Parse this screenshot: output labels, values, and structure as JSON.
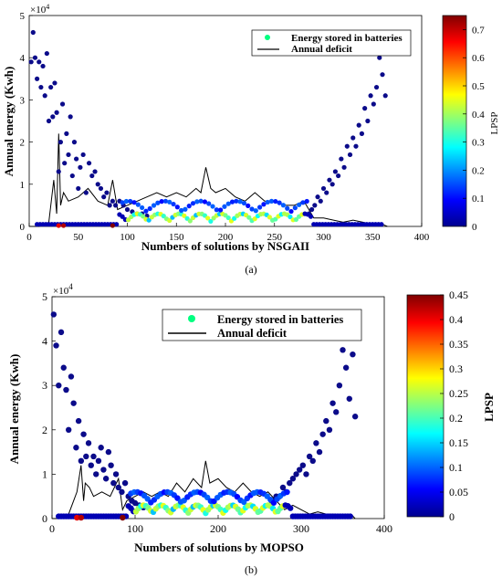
{
  "chart_data": [
    {
      "type": "scatter",
      "caption": "(a)",
      "xlabel": "Numbers of solutions by NSGAII",
      "ylabel": "Annual energy (Kwh)",
      "yexponent": "×10^4",
      "xlim": [
        0,
        400
      ],
      "ylim": [
        0,
        5
      ],
      "xticks": [
        "0",
        "50",
        "100",
        "150",
        "200",
        "250",
        "300",
        "350",
        "400"
      ],
      "yticks": [
        "0",
        "1",
        "2",
        "3",
        "4",
        "5"
      ],
      "colorbar": {
        "label": "LPSP",
        "range": [
          0,
          0.75
        ],
        "ticks": [
          "0",
          "0.1",
          "0.2",
          "0.3",
          "0.4",
          "0.5",
          "0.6",
          "0.7"
        ]
      },
      "legend": {
        "position": "top-right",
        "entries": [
          "Energy stored in batteries",
          "Annual deficit"
        ]
      },
      "series": [
        {
          "name": "Energy stored in batteries",
          "upper_points_x": [
            2,
            4,
            6,
            8,
            10,
            12,
            14,
            16,
            18,
            20,
            22,
            24,
            26,
            28,
            30,
            32,
            34,
            36,
            38,
            40,
            42,
            44,
            46,
            48,
            50,
            52,
            55,
            58,
            61,
            64,
            67,
            70,
            73,
            76,
            79,
            82,
            85,
            88,
            92,
            96,
            100,
            105,
            110,
            115,
            120
          ],
          "upper_points_y": [
            3.9,
            4.6,
            4.0,
            3.5,
            3.9,
            3.3,
            3.8,
            3.1,
            4.1,
            2.5,
            3.3,
            2.6,
            3.4,
            2.7,
            1.3,
            2.0,
            2.9,
            1.5,
            2.2,
            1.7,
            2.6,
            1.2,
            2.0,
            1.6,
            0.9,
            1.4,
            1.7,
            0.8,
            1.5,
            1.2,
            1.3,
            1.0,
            0.9,
            0.7,
            0.8,
            0.5,
            0.6,
            0.5,
            0.6,
            0.5,
            0.4,
            0.35,
            0.3,
            0.3,
            0.25
          ],
          "right_points_x": [
            285,
            288,
            291,
            294,
            297,
            300,
            303,
            306,
            309,
            312,
            315,
            318,
            321,
            324,
            327,
            330,
            333,
            336,
            339,
            342,
            345,
            348,
            351,
            354,
            357,
            360,
            363
          ],
          "right_points_y": [
            0.3,
            0.4,
            0.5,
            0.7,
            0.6,
            0.9,
            0.8,
            1.1,
            1.0,
            1.3,
            1.2,
            1.6,
            1.4,
            1.9,
            1.7,
            2.1,
            1.9,
            2.4,
            2.2,
            2.8,
            2.5,
            3.1,
            2.9,
            3.3,
            4.0,
            3.6,
            3.1
          ],
          "lpsp_note": "low-energy solutions carry higher LPSP"
        },
        {
          "name": "Annual deficit",
          "x": [
            0,
            10,
            20,
            25,
            28,
            30,
            32,
            35,
            40,
            50,
            60,
            70,
            80,
            85,
            90,
            100,
            110,
            120,
            130,
            140,
            150,
            160,
            170,
            175,
            180,
            185,
            190,
            200,
            210,
            220,
            230,
            240,
            250,
            260,
            270,
            280,
            290,
            300,
            310,
            320,
            330,
            340,
            350,
            360,
            365
          ],
          "y": [
            0,
            0,
            0.1,
            1.1,
            0.3,
            2.2,
            0.5,
            0.8,
            0.6,
            0.7,
            0.9,
            0.6,
            0.5,
            1.1,
            0.4,
            0.5,
            0.6,
            0.7,
            0.8,
            0.7,
            0.8,
            0.7,
            0.9,
            0.8,
            1.4,
            0.9,
            0.8,
            0.9,
            0.7,
            0.6,
            0.8,
            0.6,
            0.6,
            0.5,
            0.5,
            0.6,
            0.2,
            0.2,
            0.15,
            0.1,
            0.15,
            0.1,
            0.05,
            0.05,
            0
          ]
        }
      ]
    },
    {
      "type": "scatter",
      "caption": "(b)",
      "xlabel": "Numbers of solutions by MOPSO",
      "ylabel": "Annual energy (Kwh)",
      "yexponent": "×10^4",
      "xlim": [
        0,
        400
      ],
      "ylim": [
        0,
        5
      ],
      "xticks": [
        "0",
        "100",
        "200",
        "300",
        "400"
      ],
      "yticks": [
        "0",
        "1",
        "2",
        "3",
        "4",
        "5"
      ],
      "colorbar": {
        "label": "LPSP",
        "range": [
          0,
          0.45
        ],
        "ticks": [
          "0",
          "0.05",
          "0.1",
          "0.15",
          "0.2",
          "0.25",
          "0.3",
          "0.35",
          "0.4",
          "0.45"
        ]
      },
      "legend": {
        "position": "top-center",
        "entries": [
          "Energy stored in batteries",
          "Annual deficit"
        ]
      },
      "series": [
        {
          "name": "Energy stored in batteries",
          "upper_points_x": [
            2,
            5,
            8,
            11,
            14,
            17,
            20,
            23,
            26,
            29,
            32,
            35,
            38,
            41,
            44,
            47,
            50,
            53,
            56,
            59,
            62,
            65,
            68,
            71,
            74,
            77,
            80,
            84,
            88,
            92,
            96,
            100,
            105,
            110
          ],
          "upper_points_y": [
            4.6,
            3.9,
            3.0,
            4.2,
            3.4,
            2.9,
            2.0,
            3.2,
            2.6,
            1.6,
            2.2,
            1.3,
            1.9,
            1.4,
            1.7,
            1.2,
            1.4,
            1.0,
            1.3,
            1.6,
            1.1,
            0.9,
            1.5,
            1.2,
            0.8,
            1.0,
            0.7,
            0.6,
            0.8,
            0.5,
            0.4,
            0.35,
            0.3,
            0.25
          ],
          "right_points_x": [
            262,
            266,
            270,
            274,
            278,
            282,
            286,
            290,
            294,
            298,
            302,
            306,
            310,
            314,
            318,
            322,
            326,
            330,
            334,
            338,
            342,
            346,
            350,
            354,
            358,
            362,
            365
          ],
          "right_points_y": [
            0.3,
            0.4,
            0.5,
            0.5,
            0.7,
            0.6,
            0.8,
            0.9,
            1.0,
            1.1,
            1.2,
            1.0,
            1.4,
            1.3,
            1.7,
            1.5,
            1.9,
            2.2,
            2.0,
            2.6,
            2.4,
            3.0,
            3.8,
            3.4,
            2.7,
            3.7,
            2.3
          ],
          "lpsp_note": "low-energy solutions carry higher LPSP"
        },
        {
          "name": "Annual deficit",
          "x": [
            0,
            10,
            20,
            30,
            35,
            38,
            40,
            45,
            50,
            60,
            70,
            80,
            85,
            90,
            100,
            110,
            120,
            130,
            140,
            150,
            160,
            170,
            180,
            185,
            190,
            200,
            210,
            220,
            230,
            240,
            250,
            260,
            270,
            280,
            290,
            300,
            310,
            320,
            330,
            340,
            350,
            360,
            365
          ],
          "y": [
            0,
            0,
            0.1,
            0.6,
            1.2,
            0.4,
            0.8,
            0.7,
            0.5,
            0.6,
            0.5,
            0.9,
            0.2,
            0.4,
            0.5,
            0.6,
            0.5,
            0.6,
            0.5,
            0.8,
            0.6,
            0.9,
            0.7,
            1.3,
            0.8,
            0.9,
            0.7,
            0.6,
            0.8,
            0.6,
            0.5,
            0.6,
            0.4,
            0.2,
            0.3,
            0.2,
            0.1,
            0.15,
            0.1,
            0.1,
            0.05,
            0.1,
            0
          ]
        }
      ]
    }
  ]
}
